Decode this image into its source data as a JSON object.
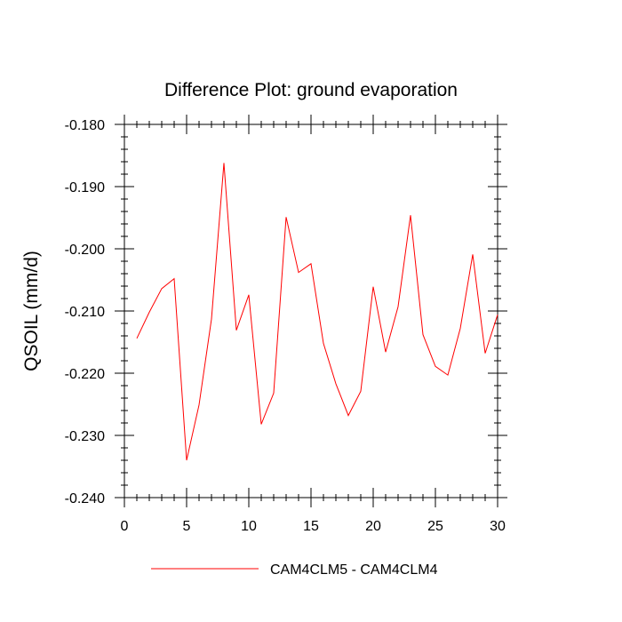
{
  "chart_data": {
    "type": "line",
    "title": "Difference Plot: ground evaporation",
    "xlabel": "",
    "ylabel": "QSOIL  (mm/d)",
    "xlim": [
      0,
      30
    ],
    "ylim": [
      -0.24,
      -0.18
    ],
    "x_major_ticks": [
      0,
      5,
      10,
      15,
      20,
      25,
      30
    ],
    "x_minor_step": 1,
    "y_major_ticks": [
      -0.24,
      -0.23,
      -0.22,
      -0.21,
      -0.2,
      -0.19,
      -0.18
    ],
    "y_tick_labels": [
      "-0.240",
      "-0.230",
      "-0.220",
      "-0.210",
      "-0.200",
      "-0.190",
      "-0.180"
    ],
    "y_minor_step": 0.002,
    "grid": false,
    "legend": "bottom",
    "colors": {
      "series": "#ff0000",
      "axes": "#000000"
    },
    "series": [
      {
        "name": "CAM4CLM5 - CAM4CLM4",
        "x": [
          1,
          2,
          3,
          4,
          5,
          6,
          7,
          8,
          9,
          10,
          11,
          12,
          13,
          14,
          15,
          16,
          17,
          18,
          19,
          20,
          21,
          22,
          23,
          24,
          25,
          26,
          27,
          28,
          29,
          30
        ],
        "values": [
          -0.2144,
          -0.2102,
          -0.2064,
          -0.2048,
          -0.234,
          -0.2251,
          -0.2113,
          -0.1862,
          -0.2131,
          -0.2074,
          -0.2282,
          -0.2232,
          -0.1949,
          -0.2038,
          -0.2024,
          -0.2152,
          -0.2217,
          -0.2268,
          -0.2229,
          -0.2061,
          -0.2166,
          -0.2093,
          -0.1946,
          -0.2138,
          -0.2189,
          -0.2203,
          -0.2128,
          -0.2009,
          -0.2168,
          -0.2106
        ]
      }
    ]
  }
}
